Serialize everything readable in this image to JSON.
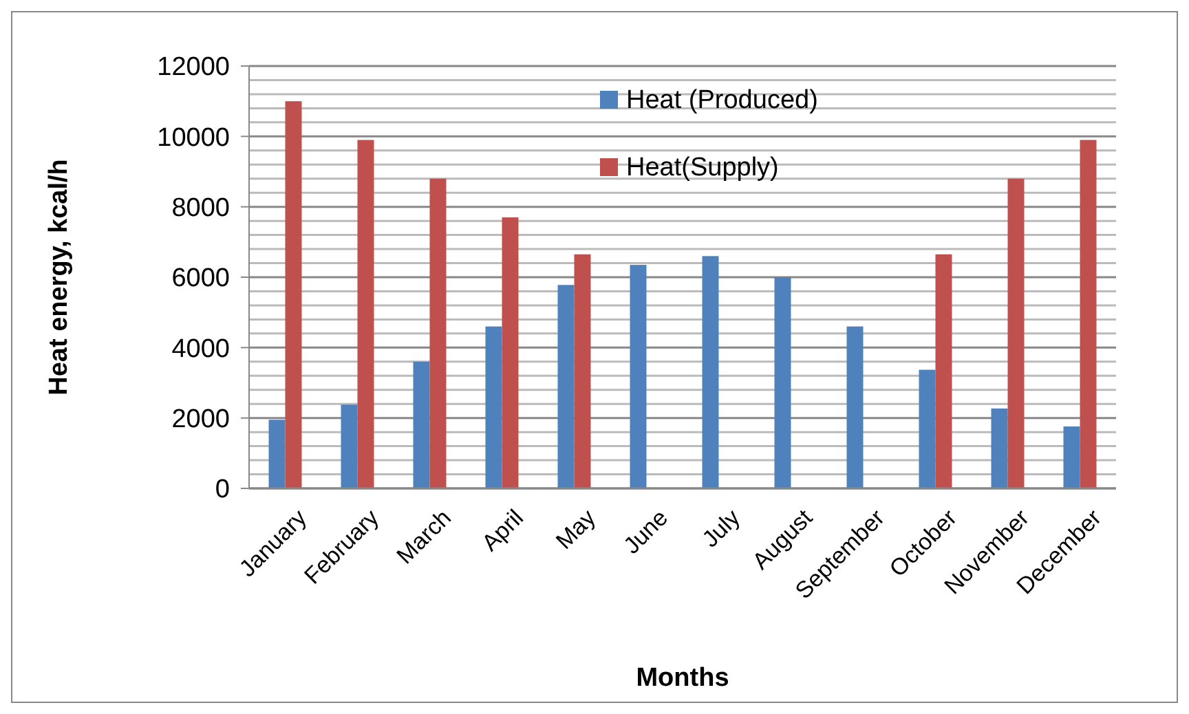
{
  "chart_data": {
    "type": "bar",
    "xlabel": "Months",
    "ylabel": "Heat energy, kcal/h",
    "categories": [
      "January",
      "February",
      "March",
      "April",
      "May",
      "June",
      "July",
      "August",
      "September",
      "October",
      "November",
      "December"
    ],
    "series": [
      {
        "name": "Heat (Produced)",
        "color": "#4f81bd",
        "values": [
          1950,
          2380,
          3600,
          4600,
          5780,
          6350,
          6600,
          6000,
          4600,
          3370,
          2270,
          1760
        ]
      },
      {
        "name": "Heat(Supply)",
        "color": "#c0504d",
        "values": [
          11000,
          9900,
          8800,
          7700,
          6650,
          null,
          null,
          null,
          null,
          6650,
          8800,
          9900
        ]
      }
    ],
    "ylim": [
      0,
      12000
    ],
    "yticks": [
      0,
      {
        "value": 400,
        "label": null
      },
      {
        "value": 800,
        "label": null
      },
      {
        "value": 1200,
        "label": null
      },
      {
        "value": 1600,
        "label": null
      },
      2000,
      {
        "value": 2400,
        "label": null
      },
      {
        "value": 2800,
        "label": null
      },
      {
        "value": 3200,
        "label": null
      },
      {
        "value": 3600,
        "label": null
      },
      4000,
      {
        "value": 4400,
        "label": null
      },
      {
        "value": 4800,
        "label": null
      },
      {
        "value": 5200,
        "label": null
      },
      {
        "value": 5600,
        "label": null
      },
      6000,
      {
        "value": 6400,
        "label": null
      },
      {
        "value": 6800,
        "label": null
      },
      {
        "value": 7200,
        "label": null
      },
      {
        "value": 7600,
        "label": null
      },
      8000,
      {
        "value": 8400,
        "label": null
      },
      {
        "value": 8800,
        "label": null
      },
      {
        "value": 9200,
        "label": null
      },
      {
        "value": 9600,
        "label": null
      },
      10000,
      {
        "value": 10400,
        "label": null
      },
      {
        "value": 10800,
        "label": null
      },
      {
        "value": 11200,
        "label": null
      },
      {
        "value": 11600,
        "label": null
      },
      12000
    ],
    "grid": "y",
    "legend": "top right"
  }
}
